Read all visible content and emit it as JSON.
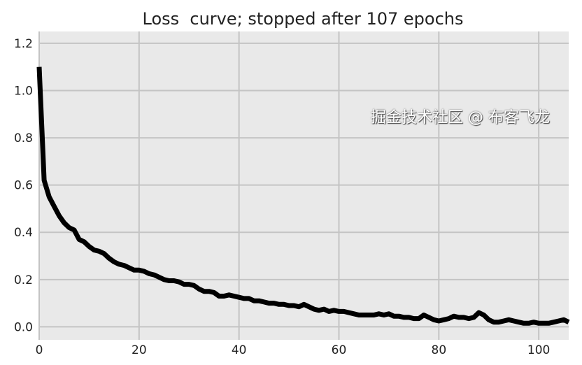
{
  "chart_data": {
    "type": "line",
    "title": "Loss  curve; stopped after 107 epochs",
    "xlabel": "",
    "ylabel": "",
    "xlim": [
      0,
      106
    ],
    "ylim": [
      -0.055,
      1.25
    ],
    "xticks": [
      0,
      20,
      40,
      60,
      80,
      100
    ],
    "yticks": [
      0.0,
      0.2,
      0.4,
      0.6,
      0.8,
      1.0,
      1.2
    ],
    "ytick_labels": [
      "0.0",
      "0.2",
      "0.4",
      "0.6",
      "0.8",
      "1.0",
      "1.2"
    ],
    "grid": true,
    "background": "#e9e9e9",
    "line_color": "#000000",
    "x": [
      0,
      1,
      2,
      3,
      4,
      5,
      6,
      7,
      8,
      9,
      10,
      11,
      12,
      13,
      14,
      15,
      16,
      17,
      18,
      19,
      20,
      21,
      22,
      23,
      24,
      25,
      26,
      27,
      28,
      29,
      30,
      31,
      32,
      33,
      34,
      35,
      36,
      37,
      38,
      39,
      40,
      41,
      42,
      43,
      44,
      45,
      46,
      47,
      48,
      49,
      50,
      51,
      52,
      53,
      54,
      55,
      56,
      57,
      58,
      59,
      60,
      61,
      62,
      63,
      64,
      65,
      66,
      67,
      68,
      69,
      70,
      71,
      72,
      73,
      74,
      75,
      76,
      77,
      78,
      79,
      80,
      81,
      82,
      83,
      84,
      85,
      86,
      87,
      88,
      89,
      90,
      91,
      92,
      93,
      94,
      95,
      96,
      97,
      98,
      99,
      100,
      101,
      102,
      103,
      104,
      105,
      106
    ],
    "y": [
      1.1,
      0.62,
      0.55,
      0.51,
      0.47,
      0.44,
      0.42,
      0.41,
      0.37,
      0.36,
      0.34,
      0.325,
      0.32,
      0.31,
      0.29,
      0.275,
      0.265,
      0.26,
      0.25,
      0.24,
      0.24,
      0.235,
      0.225,
      0.22,
      0.21,
      0.2,
      0.195,
      0.195,
      0.19,
      0.18,
      0.18,
      0.175,
      0.16,
      0.15,
      0.15,
      0.145,
      0.13,
      0.13,
      0.135,
      0.13,
      0.125,
      0.12,
      0.12,
      0.11,
      0.11,
      0.105,
      0.1,
      0.1,
      0.095,
      0.095,
      0.09,
      0.09,
      0.085,
      0.095,
      0.085,
      0.075,
      0.07,
      0.075,
      0.065,
      0.07,
      0.065,
      0.065,
      0.06,
      0.055,
      0.05,
      0.05,
      0.05,
      0.05,
      0.055,
      0.05,
      0.055,
      0.045,
      0.045,
      0.04,
      0.04,
      0.035,
      0.035,
      0.05,
      0.04,
      0.03,
      0.025,
      0.03,
      0.035,
      0.045,
      0.04,
      0.04,
      0.035,
      0.04,
      0.06,
      0.05,
      0.03,
      0.02,
      0.02,
      0.025,
      0.03,
      0.025,
      0.02,
      0.015,
      0.015,
      0.02,
      0.015,
      0.015,
      0.015,
      0.02,
      0.025,
      0.03,
      0.02
    ]
  },
  "watermark": "掘金技术社区 @ 布客飞龙"
}
